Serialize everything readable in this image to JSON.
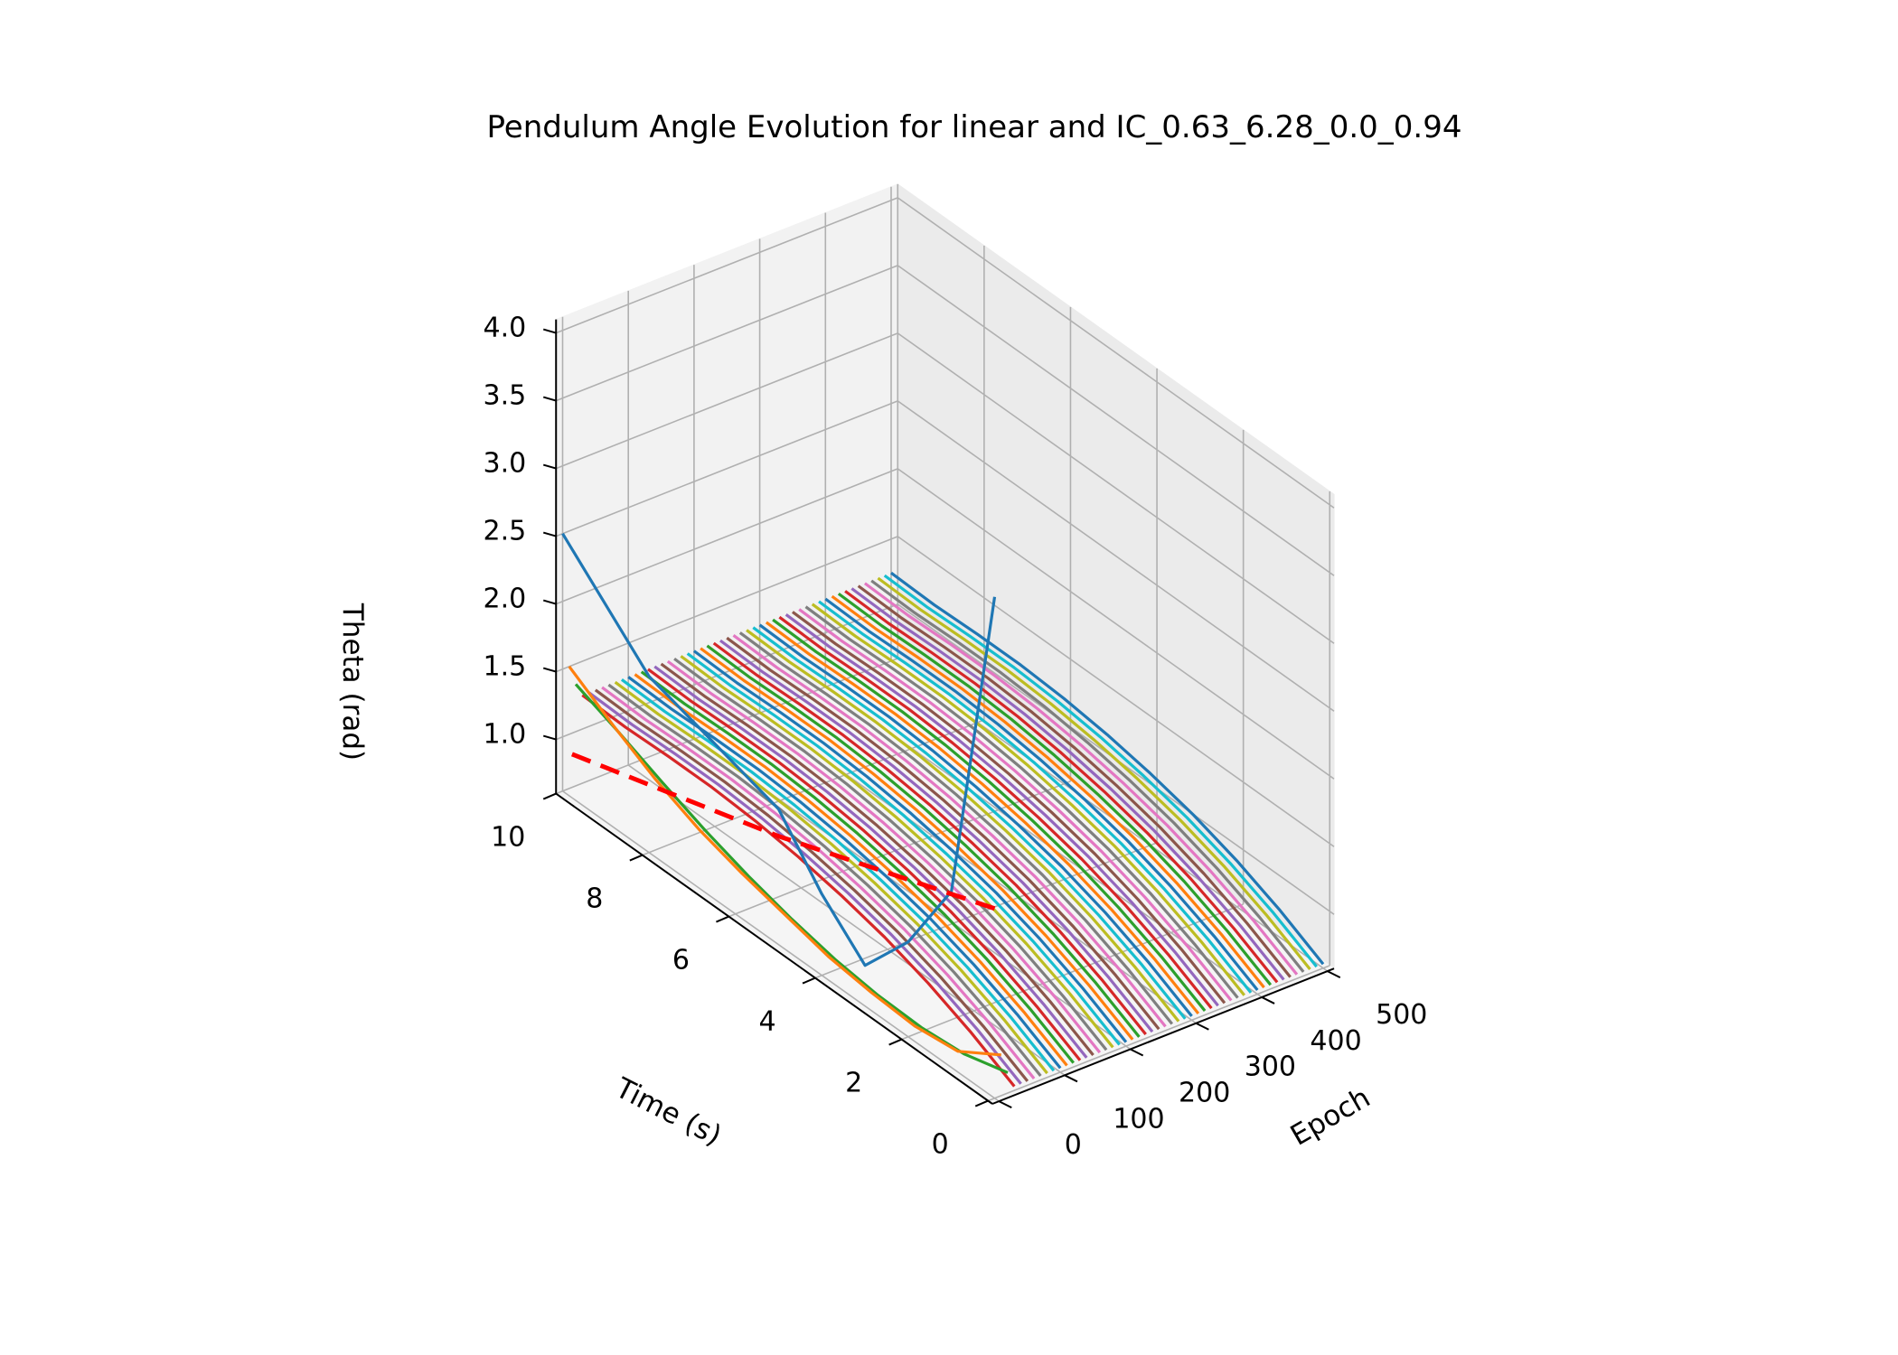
{
  "chart_data": {
    "type": "line",
    "projection": "3d",
    "title": "Pendulum Angle Evolution for linear and IC_0.63_6.28_0.0_0.94",
    "xlabel": "Time (s)",
    "ylabel": "Epoch",
    "zlabel": "Theta (rad)",
    "x_ticks": [
      "0",
      "2",
      "4",
      "6",
      "8",
      "10"
    ],
    "y_ticks": [
      "0",
      "100",
      "200",
      "300",
      "400",
      "500"
    ],
    "z_ticks": [
      "1.0",
      "1.5",
      "2.0",
      "2.5",
      "3.0",
      "3.5",
      "4.0"
    ],
    "xlim": [
      0,
      10
    ],
    "ylim": [
      0,
      500
    ],
    "zlim": [
      0.6,
      4.1
    ],
    "grid": true,
    "legend": "none",
    "epochs": {
      "start": 0,
      "end": 500,
      "step": 10
    },
    "x": [
      0,
      1,
      2,
      3,
      4,
      5,
      6,
      7,
      8,
      9,
      10
    ],
    "series_profile": {
      "description": "Theta vs time for each training epoch (later epochs)",
      "values": [
        0.63,
        0.8,
        0.94,
        1.05,
        1.13,
        1.19,
        1.23,
        1.25,
        1.25,
        1.24,
        1.25
      ]
    },
    "early_series": [
      {
        "epoch": 0,
        "values": [
          4.3,
          1.9,
          1.3,
          0.9,
          1.2,
          1.6,
          1.7,
          1.8,
          1.9,
          2.2,
          2.5
        ]
      },
      {
        "epoch": 10,
        "values": [
          0.9,
          0.7,
          0.66,
          0.68,
          0.72,
          0.8,
          0.88,
          0.98,
          1.12,
          1.3,
          1.5
        ]
      },
      {
        "epoch": 20,
        "values": [
          0.75,
          0.66,
          0.63,
          0.64,
          0.68,
          0.75,
          0.84,
          0.95,
          1.08,
          1.22,
          1.35
        ]
      }
    ],
    "reference_series": {
      "style": "dashed",
      "color": "#ff0000",
      "epoch": 0,
      "values": [
        2.0,
        1.88,
        1.76,
        1.64,
        1.52,
        1.4,
        1.3,
        1.2,
        1.1,
        1.0,
        0.9
      ]
    },
    "colors": [
      "#1f77b4",
      "#ff7f0e",
      "#2ca02c",
      "#d62728",
      "#9467bd",
      "#8c564b",
      "#e377c2",
      "#7f7f7f",
      "#bcbd22",
      "#17becf"
    ]
  }
}
